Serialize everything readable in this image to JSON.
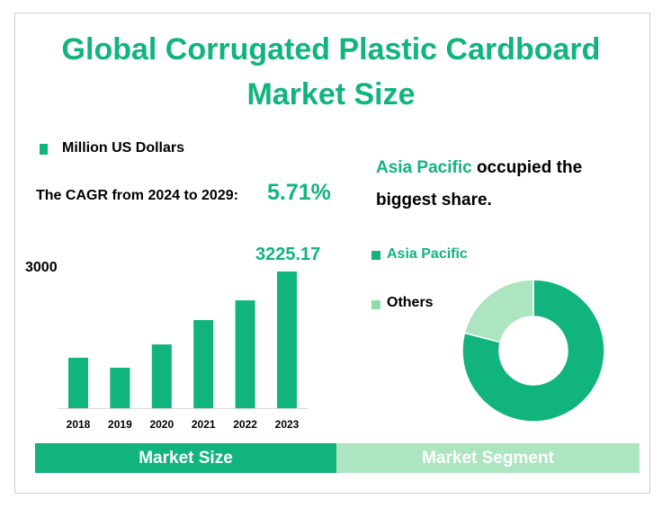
{
  "title_line1": "Global Corrugated Plastic Cardboard",
  "title_line2": "Market Size",
  "legend_unit": "Million US Dollars",
  "cagr_label": "The CAGR from 2024 to 2029:",
  "cagr_value": "5.71%",
  "insight": {
    "highlight": "Asia Pacific",
    "rest_line1": " occupied the",
    "rest_line2": "biggest share."
  },
  "tabs": {
    "left": "Market Size",
    "right": "Market Segment"
  },
  "colors": {
    "primary": "#10b47c",
    "secondary": "#ade5c0"
  },
  "chart_data": [
    {
      "type": "bar",
      "categories": [
        "2018",
        "2019",
        "2020",
        "2021",
        "2022",
        "2023"
      ],
      "values": [
        1190,
        955,
        1505,
        2080,
        2545,
        3225.17
      ],
      "axis_label": "3000",
      "data_label": "3225.17",
      "ylim": [
        0,
        3225.17
      ],
      "grid": false
    },
    {
      "type": "pie",
      "donut": true,
      "labels": [
        "Asia Pacific",
        "Others"
      ],
      "values": [
        79,
        21
      ],
      "legend_placement": "left"
    }
  ]
}
